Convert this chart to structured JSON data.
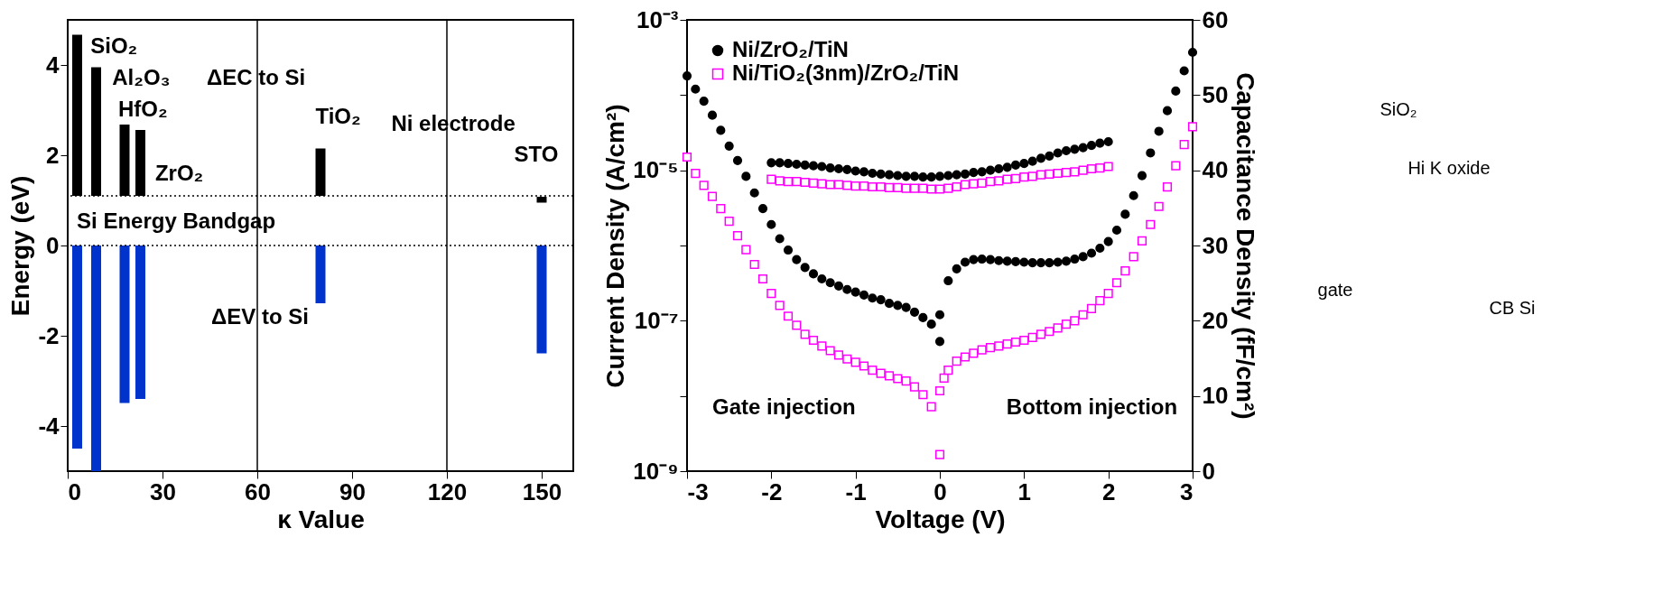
{
  "chart_data": [
    {
      "type": "bar",
      "xlabel": "κ Value",
      "ylabel": "Energy (eV)",
      "x": [
        3,
        9,
        18,
        23,
        80,
        150
      ],
      "series": [
        {
          "color": "#000000",
          "base": [
            1.1,
            1.1,
            1.1,
            1.1,
            1.1,
            0.95
          ],
          "values": [
            3.57,
            2.85,
            1.58,
            1.46,
            1.05,
            0.13
          ]
        },
        {
          "color": "#0033cc",
          "base": [
            0,
            0,
            0,
            0,
            0,
            0
          ],
          "values": [
            -4.5,
            -5.0,
            -3.49,
            -3.4,
            -1.28,
            -2.39
          ]
        }
      ],
      "xlim": [
        0,
        160
      ],
      "xticks": [
        0,
        30,
        60,
        90,
        120,
        150
      ],
      "ylim": [
        -5,
        5
      ],
      "yticks": [
        -4,
        -2,
        0,
        2,
        4
      ],
      "grid": false,
      "legend": false,
      "ref_lines": [
        {
          "axis": "y",
          "value": 1.1,
          "line_style": "dotted",
          "color": "#000000"
        },
        {
          "axis": "y",
          "value": 0,
          "line_style": "dotted",
          "color": "#000000"
        },
        {
          "axis": "x",
          "value": 60,
          "line_style": "solid",
          "color": "#000000"
        },
        {
          "axis": "x",
          "value": 120,
          "line_style": "solid",
          "color": "#000000"
        }
      ],
      "annotations": [
        "SiO₂",
        "Al₂O₃",
        "HfO₂",
        "ZrO₂",
        "ΔEC to Si",
        "TiO₂",
        "Ni electrode",
        "STO",
        "Si Energy Bandgap",
        "ΔEV to Si"
      ]
    },
    {
      "type": "scatter",
      "xlabel": "Voltage (V)",
      "ylabel": "Current Density (A/cm²)",
      "y2label": "Capacitance Density (fF/cm²)",
      "log": "y",
      "legend": "top left",
      "grid": false,
      "xlim": [
        -3,
        3
      ],
      "xticks": [
        -3,
        -2,
        -1,
        0,
        1,
        2,
        3
      ],
      "ylim": [
        1e-09,
        0.001
      ],
      "yticks": [
        {
          "value": 1e-09,
          "label": "10⁻⁹"
        },
        {
          "value": 1e-08,
          "label": null
        },
        {
          "value": 1e-07,
          "label": "10⁻⁷"
        },
        {
          "value": 1e-06,
          "label": null
        },
        {
          "value": 1e-05,
          "label": "10⁻⁵"
        },
        {
          "value": 0.0001,
          "label": null
        },
        {
          "value": 0.001,
          "label": "10⁻³"
        }
      ],
      "y2lim": [
        0,
        60
      ],
      "y2ticks": [
        0,
        10,
        20,
        30,
        40,
        50,
        60
      ],
      "series": [
        {
          "name": "Ni/ZrO₂/TiN",
          "color": "#000000",
          "marker": "circle",
          "x": [
            -3.0,
            -2.9,
            -2.8,
            -2.7,
            -2.6,
            -2.5,
            -2.4,
            -2.3,
            -2.2,
            -2.1,
            -2.0,
            -1.9,
            -1.8,
            -1.7,
            -1.6,
            -1.5,
            -1.4,
            -1.3,
            -1.2,
            -1.1,
            -1.0,
            -0.9,
            -0.8,
            -0.7,
            -0.6,
            -0.5,
            -0.4,
            -0.3,
            -0.2,
            -0.1,
            0,
            0,
            0.1,
            0.2,
            0.3,
            0.4,
            0.5,
            0.6,
            0.7,
            0.8,
            0.9,
            1.0,
            1.1,
            1.2,
            1.3,
            1.4,
            1.5,
            1.6,
            1.7,
            1.8,
            1.9,
            2.0,
            2.1,
            2.2,
            2.3,
            2.4,
            2.5,
            2.6,
            2.7,
            2.8,
            2.9,
            3.0
          ],
          "values": [
            0.00018,
            0.00012,
            8.3e-05,
            5.4e-05,
            3.4e-05,
            2.1e-05,
            1.35e-05,
            8.3e-06,
            5e-06,
            3.1e-06,
            1.9e-06,
            1.23e-06,
            8.7e-07,
            6.5e-07,
            5.1e-07,
            4.2e-07,
            3.6e-07,
            3.2e-07,
            2.9e-07,
            2.6e-07,
            2.4e-07,
            2.2e-07,
            2e-07,
            1.9e-07,
            1.7e-07,
            1.6e-07,
            1.5e-07,
            1.3e-07,
            1.1e-07,
            9e-08,
            5.3e-08,
            1.2e-07,
            3.4e-07,
            4.9e-07,
            6e-07,
            6.5e-07,
            6.6e-07,
            6.5e-07,
            6.3e-07,
            6.2e-07,
            6.1e-07,
            6e-07,
            5.9e-07,
            5.9e-07,
            5.9e-07,
            6e-07,
            6.2e-07,
            6.6e-07,
            7.1e-07,
            7.9e-07,
            9.2e-07,
            1.13e-06,
            1.6e-06,
            2.6e-06,
            4.6e-06,
            8.5e-06,
            1.7e-05,
            3.3e-05,
            6.2e-05,
            0.000113,
            0.00021,
            0.00037
          ]
        },
        {
          "name": "Ni/TiO₂(3nm)/ZrO₂/TiN",
          "color": "#ff00ff",
          "marker": "square",
          "x": [
            -3.0,
            -2.9,
            -2.8,
            -2.7,
            -2.6,
            -2.5,
            -2.4,
            -2.3,
            -2.2,
            -2.1,
            -2.0,
            -1.9,
            -1.8,
            -1.7,
            -1.6,
            -1.5,
            -1.4,
            -1.3,
            -1.2,
            -1.1,
            -1.0,
            -0.9,
            -0.8,
            -0.7,
            -0.6,
            -0.5,
            -0.4,
            -0.3,
            -0.2,
            -0.1,
            0,
            0,
            0.05,
            0.1,
            0.2,
            0.3,
            0.4,
            0.5,
            0.6,
            0.7,
            0.8,
            0.9,
            1.0,
            1.1,
            1.2,
            1.3,
            1.4,
            1.5,
            1.6,
            1.7,
            1.8,
            1.9,
            2.0,
            2.1,
            2.2,
            2.3,
            2.4,
            2.5,
            2.6,
            2.7,
            2.8,
            2.9,
            3.0
          ],
          "values": [
            1.5e-05,
            9.1e-06,
            6.3e-06,
            4.5e-06,
            3.1e-06,
            2.1e-06,
            1.35e-06,
            8.8e-07,
            5.6e-07,
            3.6e-07,
            2.3e-07,
            1.6e-07,
            1.15e-07,
            8.7e-08,
            6.6e-08,
            5.5e-08,
            4.6e-08,
            4e-08,
            3.5e-08,
            3.1e-08,
            2.8e-08,
            2.5e-08,
            2.2e-08,
            2e-08,
            1.85e-08,
            1.7e-08,
            1.58e-08,
            1.32e-08,
            1.04e-08,
            7.2e-09,
            1.66e-09,
            1.17e-08,
            1.73e-08,
            2.2e-08,
            2.9e-08,
            3.3e-08,
            3.7e-08,
            4.1e-08,
            4.4e-08,
            4.6e-08,
            4.9e-08,
            5.2e-08,
            5.5e-08,
            6e-08,
            6.6e-08,
            7.2e-08,
            8e-08,
            9e-08,
            1e-07,
            1.2e-07,
            1.45e-07,
            1.85e-07,
            2.3e-07,
            3.2e-07,
            4.6e-07,
            7.1e-07,
            1.15e-06,
            1.9e-06,
            3.3e-06,
            6e-06,
            1.15e-05,
            2.2e-05,
            3.8e-05
          ]
        },
        {
          "color": "#000000",
          "marker": "circle",
          "axis": "y2",
          "x": [
            -2.0,
            -1.9,
            -1.8,
            -1.7,
            -1.6,
            -1.5,
            -1.4,
            -1.3,
            -1.2,
            -1.1,
            -1.0,
            -0.9,
            -0.8,
            -0.7,
            -0.6,
            -0.5,
            -0.4,
            -0.3,
            -0.2,
            -0.1,
            0,
            0.1,
            0.2,
            0.3,
            0.4,
            0.5,
            0.6,
            0.7,
            0.8,
            0.9,
            1.0,
            1.1,
            1.2,
            1.3,
            1.4,
            1.5,
            1.6,
            1.7,
            1.8,
            1.9,
            2.0
          ],
          "values": [
            41.0,
            41.0,
            40.9,
            40.8,
            40.7,
            40.6,
            40.5,
            40.3,
            40.2,
            40.1,
            39.9,
            39.8,
            39.6,
            39.5,
            39.4,
            39.3,
            39.2,
            39.2,
            39.1,
            39.1,
            39.2,
            39.3,
            39.4,
            39.5,
            39.7,
            39.8,
            40.0,
            40.2,
            40.4,
            40.7,
            40.9,
            41.2,
            41.6,
            41.9,
            42.3,
            42.6,
            42.8,
            43.0,
            43.3,
            43.6,
            43.8
          ]
        },
        {
          "color": "#ff00ff",
          "marker": "square",
          "axis": "y2",
          "x": [
            -2.0,
            -1.9,
            -1.8,
            -1.7,
            -1.6,
            -1.5,
            -1.4,
            -1.3,
            -1.2,
            -1.1,
            -1.0,
            -0.9,
            -0.8,
            -0.7,
            -0.6,
            -0.5,
            -0.4,
            -0.3,
            -0.2,
            -0.1,
            0,
            0.1,
            0.2,
            0.3,
            0.4,
            0.5,
            0.6,
            0.7,
            0.8,
            0.9,
            1.0,
            1.1,
            1.2,
            1.3,
            1.4,
            1.5,
            1.6,
            1.7,
            1.8,
            1.9,
            2.0
          ],
          "values": [
            38.8,
            38.6,
            38.5,
            38.5,
            38.4,
            38.3,
            38.2,
            38.1,
            38.1,
            38.0,
            37.9,
            37.9,
            37.8,
            37.8,
            37.7,
            37.7,
            37.6,
            37.6,
            37.6,
            37.5,
            37.5,
            37.6,
            37.8,
            38.1,
            38.2,
            38.3,
            38.5,
            38.6,
            38.8,
            38.9,
            39.1,
            39.2,
            39.4,
            39.5,
            39.6,
            39.7,
            39.8,
            40.0,
            40.2,
            40.3,
            40.5
          ]
        }
      ],
      "annotations": [
        "Gate injection",
        "Bottom injection"
      ]
    },
    {
      "type": "other",
      "annotations": [
        "SiO₂",
        "Hi K oxide",
        "gate",
        "CB Si"
      ]
    }
  ]
}
